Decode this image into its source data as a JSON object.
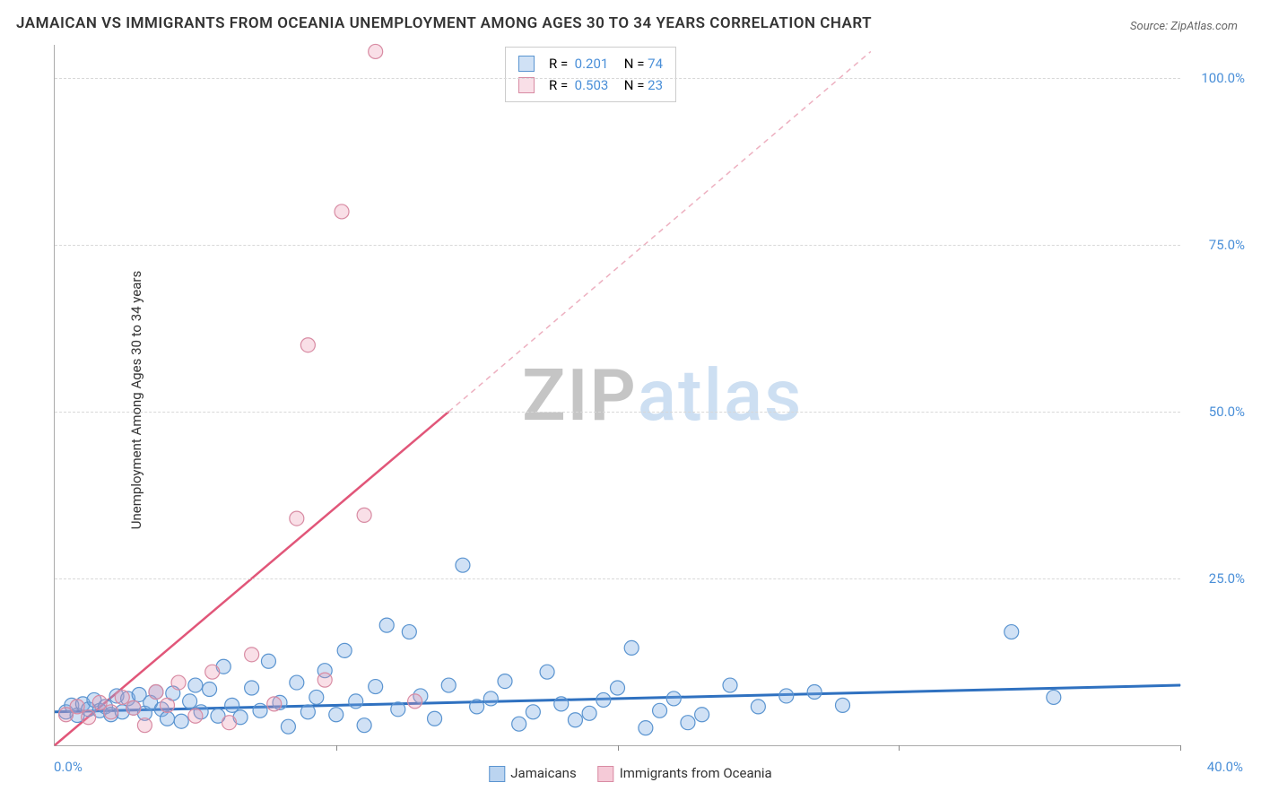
{
  "title": "JAMAICAN VS IMMIGRANTS FROM OCEANIA UNEMPLOYMENT AMONG AGES 30 TO 34 YEARS CORRELATION CHART",
  "source": "Source: ZipAtlas.com",
  "ylabel": "Unemployment Among Ages 30 to 34 years",
  "watermark_a": "ZIP",
  "watermark_b": "atlas",
  "chart": {
    "type": "scatter",
    "xlim": [
      0,
      40
    ],
    "ylim": [
      0,
      105
    ],
    "ytick_step": 25,
    "ytick_labels": [
      "25.0%",
      "50.0%",
      "75.0%",
      "100.0%"
    ],
    "xtick_positions": [
      10,
      20,
      30,
      40
    ],
    "xaxis_start": "0.0%",
    "xaxis_end": "40.0%",
    "background_color": "#ffffff",
    "grid_color": "#d8d8d8",
    "series": [
      {
        "name": "Jamaicans",
        "color_fill": "rgba(120,170,225,0.35)",
        "color_stroke": "#5a94d0",
        "marker_radius": 8,
        "r_value": "0.201",
        "n_value": "74",
        "trend": {
          "x1": 0,
          "y1": 5,
          "x2": 40,
          "y2": 9,
          "color": "#2f71c0",
          "width": 3,
          "dash": ""
        },
        "ext": {
          "x1": 40,
          "y1": 9,
          "x2": 40,
          "y2": 9,
          "color": "#2f71c0",
          "width": 2,
          "dash": "4,4"
        },
        "points": [
          [
            0.4,
            5
          ],
          [
            0.6,
            6
          ],
          [
            0.8,
            4.5
          ],
          [
            1.0,
            6.2
          ],
          [
            1.2,
            5.4
          ],
          [
            1.4,
            6.8
          ],
          [
            1.6,
            5.2
          ],
          [
            1.8,
            5.8
          ],
          [
            2.0,
            4.6
          ],
          [
            2.2,
            7.4
          ],
          [
            2.4,
            5.0
          ],
          [
            2.6,
            7.0
          ],
          [
            2.8,
            5.6
          ],
          [
            3.0,
            7.6
          ],
          [
            3.2,
            4.8
          ],
          [
            3.4,
            6.4
          ],
          [
            3.6,
            8.0
          ],
          [
            3.8,
            5.4
          ],
          [
            4.0,
            4.0
          ],
          [
            4.2,
            7.8
          ],
          [
            4.5,
            3.6
          ],
          [
            4.8,
            6.6
          ],
          [
            5.0,
            9.0
          ],
          [
            5.2,
            5.0
          ],
          [
            5.5,
            8.4
          ],
          [
            5.8,
            4.4
          ],
          [
            6.0,
            11.8
          ],
          [
            6.3,
            6.0
          ],
          [
            6.6,
            4.2
          ],
          [
            7.0,
            8.6
          ],
          [
            7.3,
            5.2
          ],
          [
            7.6,
            12.6
          ],
          [
            8.0,
            6.4
          ],
          [
            8.3,
            2.8
          ],
          [
            8.6,
            9.4
          ],
          [
            9.0,
            5.0
          ],
          [
            9.3,
            7.2
          ],
          [
            9.6,
            11.2
          ],
          [
            10.0,
            4.6
          ],
          [
            10.3,
            14.2
          ],
          [
            10.7,
            6.6
          ],
          [
            11.0,
            3.0
          ],
          [
            11.4,
            8.8
          ],
          [
            11.8,
            18.0
          ],
          [
            12.2,
            5.4
          ],
          [
            12.6,
            17.0
          ],
          [
            13.0,
            7.4
          ],
          [
            13.5,
            4.0
          ],
          [
            14.0,
            9.0
          ],
          [
            14.5,
            27.0
          ],
          [
            15.0,
            5.8
          ],
          [
            15.5,
            7.0
          ],
          [
            16.0,
            9.6
          ],
          [
            16.5,
            3.2
          ],
          [
            17.0,
            5.0
          ],
          [
            17.5,
            11.0
          ],
          [
            18.0,
            6.2
          ],
          [
            18.5,
            3.8
          ],
          [
            19.0,
            4.8
          ],
          [
            19.5,
            6.8
          ],
          [
            20.0,
            8.6
          ],
          [
            20.5,
            14.6
          ],
          [
            21.0,
            2.6
          ],
          [
            21.5,
            5.2
          ],
          [
            22.0,
            7.0
          ],
          [
            22.5,
            3.4
          ],
          [
            23.0,
            4.6
          ],
          [
            24.0,
            9.0
          ],
          [
            25.0,
            5.8
          ],
          [
            26.0,
            7.4
          ],
          [
            27.0,
            8.0
          ],
          [
            28.0,
            6.0
          ],
          [
            34.0,
            17.0
          ],
          [
            35.5,
            7.2
          ]
        ]
      },
      {
        "name": "Immigrants from Oceania",
        "color_fill": "rgba(235,150,175,0.30)",
        "color_stroke": "#d88ba3",
        "marker_radius": 8,
        "r_value": "0.503",
        "n_value": "23",
        "trend": {
          "x1": 0,
          "y1": 0,
          "x2": 14,
          "y2": 50,
          "color": "#e15679",
          "width": 2.5,
          "dash": ""
        },
        "ext": {
          "x1": 14,
          "y1": 50,
          "x2": 29,
          "y2": 104,
          "color": "#edb0c0",
          "width": 1.5,
          "dash": "6,5"
        },
        "points": [
          [
            0.4,
            4.6
          ],
          [
            0.8,
            5.8
          ],
          [
            1.2,
            4.2
          ],
          [
            1.6,
            6.4
          ],
          [
            2.0,
            5.0
          ],
          [
            2.4,
            7.2
          ],
          [
            2.8,
            5.6
          ],
          [
            3.2,
            3.0
          ],
          [
            3.6,
            8.0
          ],
          [
            4.0,
            6.0
          ],
          [
            4.4,
            9.4
          ],
          [
            5.0,
            4.4
          ],
          [
            5.6,
            11.0
          ],
          [
            6.2,
            3.4
          ],
          [
            7.0,
            13.6
          ],
          [
            7.8,
            6.2
          ],
          [
            8.6,
            34.0
          ],
          [
            9.0,
            60.0
          ],
          [
            9.6,
            9.8
          ],
          [
            10.2,
            80.0
          ],
          [
            11.0,
            34.5
          ],
          [
            11.4,
            104.0
          ],
          [
            12.8,
            6.6
          ]
        ]
      }
    ]
  },
  "bottom_legend": [
    {
      "label": "Jamaicans",
      "fill": "rgba(120,170,225,0.5)",
      "border": "#5a94d0"
    },
    {
      "label": "Immigrants from Oceania",
      "fill": "rgba(235,150,175,0.5)",
      "border": "#d88ba3"
    }
  ]
}
